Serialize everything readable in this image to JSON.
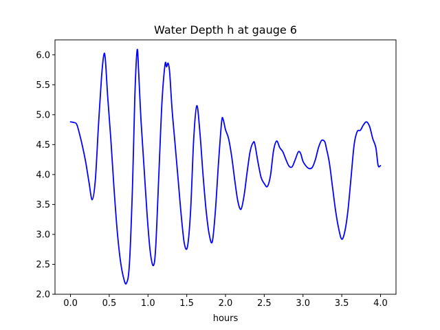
{
  "chart_data": {
    "type": "line",
    "title": "Water Depth h at gauge 6",
    "xlabel": "hours",
    "ylabel": "",
    "xlim": [
      -0.2,
      4.2
    ],
    "ylim": [
      2.0,
      6.25
    ],
    "xticks": [
      0.0,
      0.5,
      1.0,
      1.5,
      2.0,
      2.5,
      3.0,
      3.5,
      4.0
    ],
    "xtick_labels": [
      "0.0",
      "0.5",
      "1.0",
      "1.5",
      "2.0",
      "2.5",
      "3.0",
      "3.5",
      "4.0"
    ],
    "yticks": [
      2.0,
      2.5,
      3.0,
      3.5,
      4.0,
      4.5,
      5.0,
      5.5,
      6.0
    ],
    "ytick_labels": [
      "2.0",
      "2.5",
      "3.0",
      "3.5",
      "4.0",
      "4.5",
      "5.0",
      "5.5",
      "6.0"
    ],
    "grid": false,
    "series": [
      {
        "color": "#0000ff",
        "x": [
          0.0,
          0.04,
          0.08,
          0.12,
          0.16,
          0.2,
          0.24,
          0.28,
          0.32,
          0.36,
          0.4,
          0.43,
          0.45,
          0.48,
          0.52,
          0.56,
          0.6,
          0.64,
          0.68,
          0.72,
          0.76,
          0.8,
          0.83,
          0.86,
          0.88,
          0.91,
          0.95,
          0.99,
          1.03,
          1.07,
          1.1,
          1.14,
          1.18,
          1.22,
          1.24,
          1.26,
          1.28,
          1.31,
          1.35,
          1.39,
          1.43,
          1.47,
          1.51,
          1.55,
          1.59,
          1.63,
          1.67,
          1.71,
          1.75,
          1.79,
          1.83,
          1.87,
          1.91,
          1.95,
          1.97,
          2.0,
          2.04,
          2.08,
          2.12,
          2.16,
          2.2,
          2.24,
          2.28,
          2.32,
          2.36,
          2.38,
          2.42,
          2.46,
          2.5,
          2.54,
          2.58,
          2.62,
          2.66,
          2.7,
          2.74,
          2.78,
          2.82,
          2.86,
          2.9,
          2.94,
          2.97,
          3.0,
          3.04,
          3.08,
          3.12,
          3.16,
          3.2,
          3.24,
          3.28,
          3.3,
          3.34,
          3.38,
          3.42,
          3.46,
          3.5,
          3.54,
          3.58,
          3.62,
          3.66,
          3.7,
          3.74,
          3.78,
          3.82,
          3.86,
          3.9,
          3.94,
          3.97,
          4.0
        ],
        "y": [
          4.88,
          4.87,
          4.84,
          4.66,
          4.44,
          4.18,
          3.86,
          3.58,
          3.9,
          4.8,
          5.62,
          6.0,
          5.92,
          5.3,
          4.6,
          3.8,
          3.1,
          2.6,
          2.3,
          2.18,
          2.5,
          3.8,
          5.3,
          6.08,
          5.7,
          4.9,
          4.1,
          3.3,
          2.7,
          2.48,
          2.8,
          4.0,
          5.2,
          5.84,
          5.8,
          5.86,
          5.7,
          5.1,
          4.5,
          3.9,
          3.3,
          2.84,
          2.8,
          3.4,
          4.6,
          5.15,
          4.7,
          4.0,
          3.4,
          3.0,
          2.88,
          3.4,
          4.2,
          4.88,
          4.92,
          4.75,
          4.6,
          4.3,
          3.9,
          3.55,
          3.42,
          3.65,
          4.05,
          4.4,
          4.54,
          4.5,
          4.2,
          3.95,
          3.85,
          3.8,
          3.98,
          4.4,
          4.56,
          4.45,
          4.38,
          4.25,
          4.14,
          4.13,
          4.25,
          4.38,
          4.35,
          4.22,
          4.14,
          4.1,
          4.12,
          4.25,
          4.45,
          4.57,
          4.55,
          4.45,
          4.2,
          3.8,
          3.4,
          3.1,
          2.92,
          3.05,
          3.4,
          3.95,
          4.5,
          4.72,
          4.74,
          4.83,
          4.88,
          4.8,
          4.6,
          4.45,
          4.15,
          4.15
        ]
      }
    ]
  }
}
